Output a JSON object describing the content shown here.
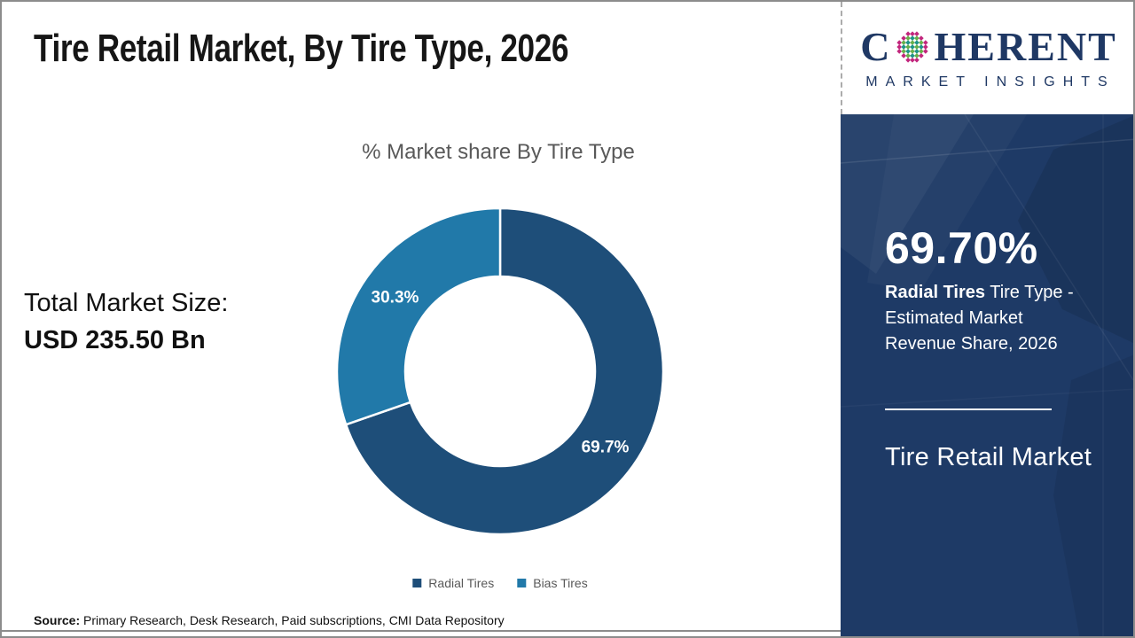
{
  "slide": {
    "title": "Tire Retail Market, By Tire Type, 2026",
    "total_market_label": "Total Market Size:",
    "total_market_value": "USD 235.50 Bn",
    "source_label": "Source:",
    "source_text": " Primary Research, Desk Research, Paid subscriptions, CMI Data Repository"
  },
  "logo": {
    "brand_prefix": "C",
    "brand_suffix": "HERENT",
    "subtitle": "MARKET INSIGHTS",
    "colors": {
      "navy": "#1f3864",
      "teal": "#1d9488",
      "green": "#67b04b",
      "magenta": "#c2267d"
    }
  },
  "sidebar": {
    "background": "#1e3a66",
    "highlight_value": "69.70%",
    "highlight_bold": "Radial Tires",
    "highlight_rest": " Tire Type - Estimated Market Revenue Share, 2026",
    "footer_title": "Tire Retail Market"
  },
  "chart_data": {
    "type": "pie",
    "donut": true,
    "title": "% Market share By Tire Type",
    "categories": [
      "Radial Tires",
      "Bias Tires"
    ],
    "values": [
      69.7,
      30.3
    ],
    "slice_labels": [
      "69.7%",
      "30.3%"
    ],
    "colors": [
      "#1e4e79",
      "#2179a9"
    ],
    "start_angle_deg": 0,
    "direction": "clockwise",
    "legend_position": "bottom",
    "label_color": "#ffffff"
  }
}
